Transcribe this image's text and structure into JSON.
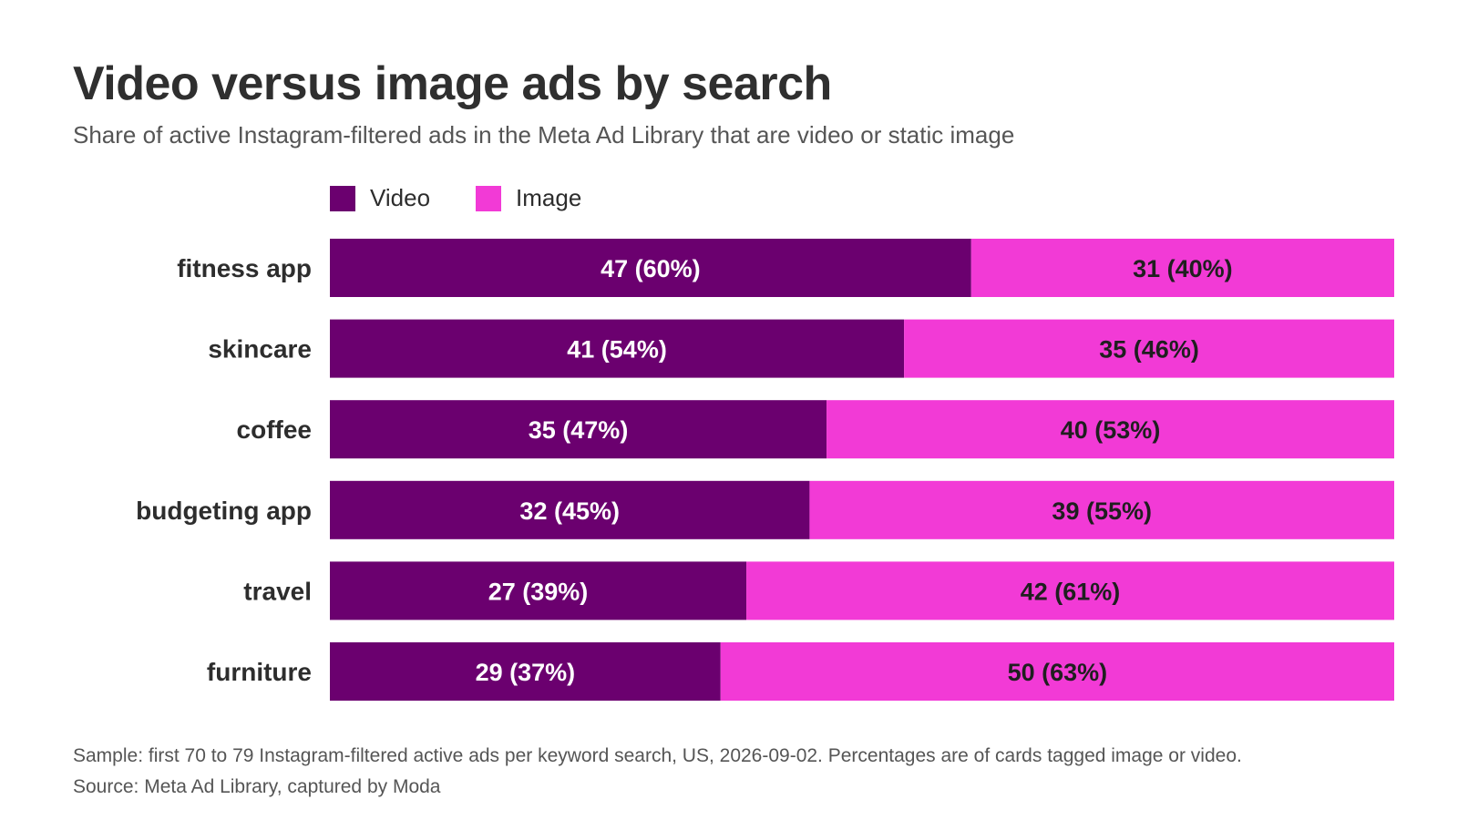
{
  "header": {
    "title": "Video versus image ads by search",
    "subtitle": "Share of active Instagram-filtered ads in the Meta Ad Library that are video or static image"
  },
  "legend": [
    {
      "label": "Video",
      "color": "#6b006f"
    },
    {
      "label": "Image",
      "color": "#f23ad6"
    }
  ],
  "colors": {
    "video": "#6b006f",
    "image": "#f23ad6",
    "video_label": "#ffffff",
    "image_label": "#1f1f1f"
  },
  "chart_data": {
    "type": "bar",
    "orientation": "horizontal",
    "stacked": "percent",
    "categories": [
      "fitness app",
      "skincare",
      "coffee",
      "budgeting app",
      "travel",
      "furniture"
    ],
    "series": [
      {
        "name": "Video",
        "values": [
          47,
          41,
          35,
          32,
          27,
          29
        ],
        "percent": [
          60,
          54,
          47,
          45,
          39,
          37
        ],
        "labels": [
          "47 (60%)",
          "41 (54%)",
          "35 (47%)",
          "32 (45%)",
          "27 (39%)",
          "29 (37%)"
        ]
      },
      {
        "name": "Image",
        "values": [
          31,
          35,
          40,
          39,
          42,
          50
        ],
        "percent": [
          40,
          46,
          53,
          55,
          61,
          63
        ],
        "labels": [
          "31 (40%)",
          "35 (46%)",
          "40 (53%)",
          "39 (55%)",
          "42 (61%)",
          "50 (63%)"
        ]
      }
    ],
    "title": "Video versus image ads by search",
    "grid": false,
    "legend_position": "top-left"
  },
  "footnote": {
    "sample": "Sample: first 70 to 79 Instagram-filtered active ads per keyword search, US, 2026-09-02. Percentages are of cards tagged image or video.",
    "source": "Source: Meta Ad Library, captured by Moda"
  }
}
